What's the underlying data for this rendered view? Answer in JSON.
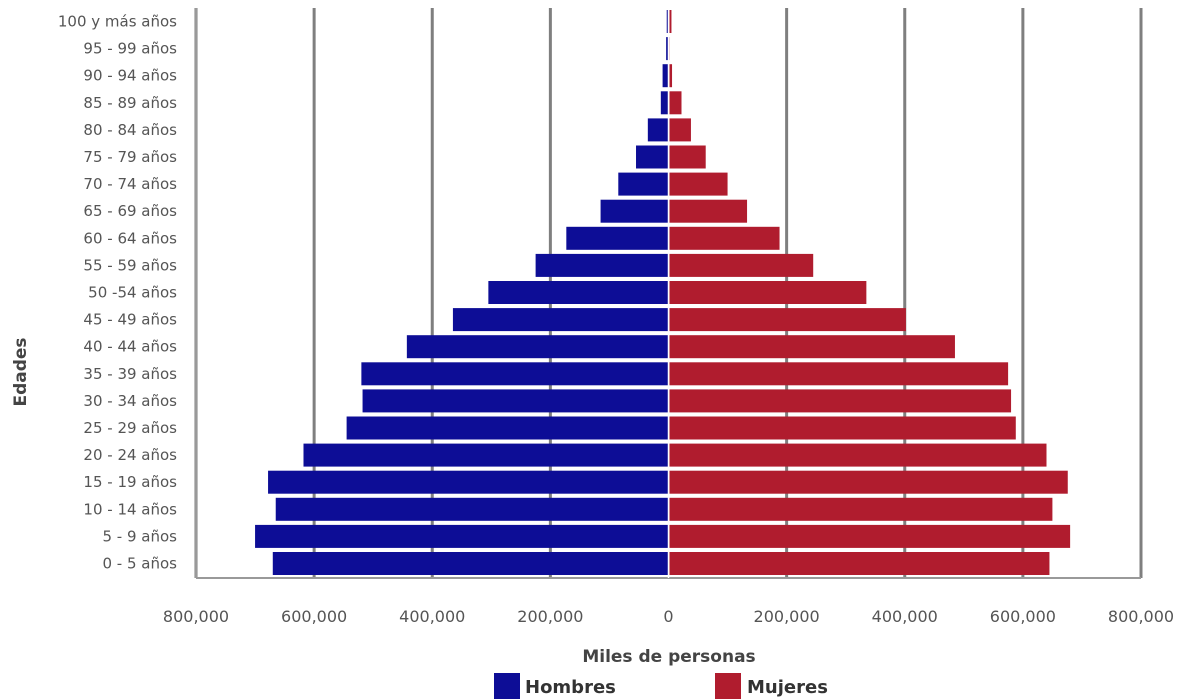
{
  "chart_data": {
    "type": "bar",
    "orientation": "horizontal",
    "layout": "population-pyramid",
    "categories": [
      "0 - 5 años",
      "5 - 9 años",
      "10 - 14 años",
      "15 - 19 años",
      "20 - 24 años",
      "25 - 29 años",
      "30 - 34 años",
      "35 - 39 años",
      "40 - 44 años",
      "45 - 49 años",
      "50 -54 años",
      "55 - 59 años",
      "60 - 64 años",
      "65 - 69 años",
      "70 - 74 años",
      "75 - 79 años",
      "80 - 84 años",
      "85 - 89 años",
      "90 - 94 años",
      "95 - 99 años",
      "100 y más años"
    ],
    "series": [
      {
        "name": "Hombres",
        "color": "#0d0d96",
        "side": "left",
        "values": [
          670000,
          700000,
          665000,
          678000,
          618000,
          545000,
          518000,
          520000,
          443000,
          365000,
          305000,
          225000,
          173000,
          115000,
          85000,
          55000,
          35000,
          13000,
          10000,
          4000,
          3000
        ]
      },
      {
        "name": "Mujeres",
        "color": "#b01c2e",
        "side": "right",
        "values": [
          645000,
          680000,
          650000,
          676000,
          640000,
          588000,
          580000,
          575000,
          485000,
          402000,
          335000,
          245000,
          188000,
          133000,
          100000,
          63000,
          38000,
          22000,
          6000,
          2000,
          5000
        ]
      }
    ],
    "xlabel": "Miles de personas",
    "ylabel": "Edades",
    "xlim": [
      -800000,
      800000
    ],
    "xticks": [
      {
        "value": -800000,
        "label": "800,000"
      },
      {
        "value": -600000,
        "label": "600,000"
      },
      {
        "value": -400000,
        "label": "400,000"
      },
      {
        "value": -200000,
        "label": "200,000"
      },
      {
        "value": 0,
        "label": "0"
      },
      {
        "value": 200000,
        "label": "200,000"
      },
      {
        "value": 400000,
        "label": "400,000"
      },
      {
        "value": 600000,
        "label": "600,000"
      },
      {
        "value": 800000,
        "label": "800,000"
      }
    ],
    "grid": true,
    "legend_position": "bottom",
    "colors": {
      "grid": "#7f7f7f",
      "axis": "#999999"
    }
  }
}
